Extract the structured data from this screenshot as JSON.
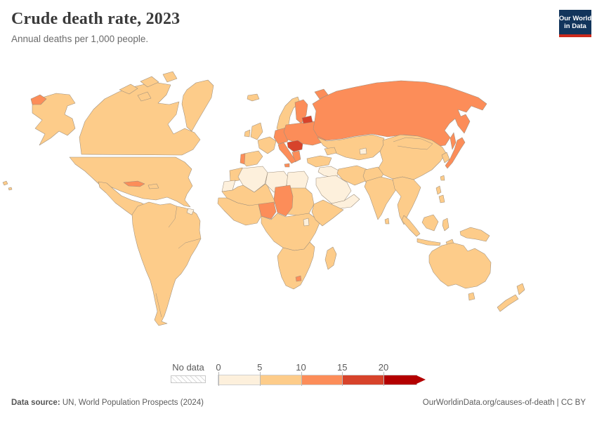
{
  "header": {
    "title": "Crude death rate, 2023",
    "subtitle": "Annual deaths per 1,000 people."
  },
  "logo": {
    "line1": "Our World",
    "line2": "in Data",
    "bg_color": "#12355c",
    "accent_color": "#cc2a1c"
  },
  "legend": {
    "no_data_label": "No data",
    "ticks": [
      "0",
      "5",
      "10",
      "15",
      "20"
    ],
    "bins": [
      {
        "range": "0-5",
        "color": "#fdf0dc"
      },
      {
        "range": "5-10",
        "color": "#fdcc8a"
      },
      {
        "range": "10-15",
        "color": "#fc8d59"
      },
      {
        "range": "15-20",
        "color": "#d7432b"
      },
      {
        "range": "20+",
        "color": "#b30000"
      }
    ]
  },
  "footer": {
    "source_label": "Data source:",
    "source_text": " UN, World Population Prospects (2024)",
    "right_text": "OurWorldinData.org/causes-of-death | CC BY"
  },
  "map_data": {
    "type": "choropleth",
    "metric": "Crude death rate (annual deaths per 1,000 people)",
    "year": "2023",
    "no_data_style": "hatched",
    "regions": [
      {
        "id": "canada",
        "bin": "5-10"
      },
      {
        "id": "arctic_islands",
        "bin": "5-10"
      },
      {
        "id": "greenland",
        "bin": "5-10"
      },
      {
        "id": "alaska",
        "bin": "5-10"
      },
      {
        "id": "chukotka_fragment",
        "bin": "10-15"
      },
      {
        "id": "usa",
        "bin": "5-10"
      },
      {
        "id": "mexico",
        "bin": "5-10"
      },
      {
        "id": "hawaii",
        "bin": "5-10"
      },
      {
        "id": "central_america",
        "bin": "0-5"
      },
      {
        "id": "cuba",
        "bin": "10-15"
      },
      {
        "id": "hispaniola",
        "bin": "5-10"
      },
      {
        "id": "south_america",
        "bin": "5-10"
      },
      {
        "id": "french_guiana",
        "bin": "0-5"
      },
      {
        "id": "iceland",
        "bin": "5-10"
      },
      {
        "id": "norway_sweden",
        "bin": "5-10"
      },
      {
        "id": "denmark",
        "bin": "5-10"
      },
      {
        "id": "finland",
        "bin": "10-15"
      },
      {
        "id": "uk",
        "bin": "5-10"
      },
      {
        "id": "ireland",
        "bin": "5-10"
      },
      {
        "id": "france",
        "bin": "5-10"
      },
      {
        "id": "iberia",
        "bin": "5-10"
      },
      {
        "id": "portugal",
        "bin": "10-15"
      },
      {
        "id": "germany_central",
        "bin": "10-15"
      },
      {
        "id": "eastern_europe",
        "bin": "10-15"
      },
      {
        "id": "baltics",
        "bin": "15-20"
      },
      {
        "id": "balkans",
        "bin": "15-20"
      },
      {
        "id": "greece",
        "bin": "10-15"
      },
      {
        "id": "italy",
        "bin": "10-15"
      },
      {
        "id": "sicily",
        "bin": "10-15"
      },
      {
        "id": "russia",
        "bin": "10-15"
      },
      {
        "id": "novaya_zemlya",
        "bin": "10-15"
      },
      {
        "id": "sakhalin",
        "bin": "10-15"
      },
      {
        "id": "central_asia",
        "bin": "5-10"
      },
      {
        "id": "tajikistan",
        "bin": "0-5"
      },
      {
        "id": "caucasus",
        "bin": "5-10"
      },
      {
        "id": "turkey",
        "bin": "5-10"
      },
      {
        "id": "levant_iraq",
        "bin": "0-5"
      },
      {
        "id": "saudi_arabia",
        "bin": "0-5"
      },
      {
        "id": "yemen_oman",
        "bin": "0-5"
      },
      {
        "id": "iran",
        "bin": "5-10"
      },
      {
        "id": "afghanistan_pakistan",
        "bin": "5-10"
      },
      {
        "id": "india",
        "bin": "5-10"
      },
      {
        "id": "sri_lanka",
        "bin": "5-10"
      },
      {
        "id": "china",
        "bin": "5-10"
      },
      {
        "id": "korea",
        "bin": "5-10"
      },
      {
        "id": "se_asia",
        "bin": "5-10"
      },
      {
        "id": "japan",
        "bin": "10-15"
      },
      {
        "id": "taiwan",
        "bin": "5-10"
      },
      {
        "id": "philippines",
        "bin": "5-10"
      },
      {
        "id": "indonesia_sumatra",
        "bin": "5-10"
      },
      {
        "id": "indonesia_java",
        "bin": "5-10"
      },
      {
        "id": "indonesia_borneo",
        "bin": "5-10"
      },
      {
        "id": "indonesia_sulawesi",
        "bin": "5-10"
      },
      {
        "id": "timor",
        "bin": "5-10"
      },
      {
        "id": "new_guinea",
        "bin": "5-10"
      },
      {
        "id": "australia",
        "bin": "5-10"
      },
      {
        "id": "tasmania",
        "bin": "5-10"
      },
      {
        "id": "nz_north",
        "bin": "5-10"
      },
      {
        "id": "nz_south",
        "bin": "5-10"
      },
      {
        "id": "morocco",
        "bin": "5-10"
      },
      {
        "id": "western_sahara",
        "bin": "0-5"
      },
      {
        "id": "algeria",
        "bin": "0-5"
      },
      {
        "id": "libya",
        "bin": "0-5"
      },
      {
        "id": "egypt",
        "bin": "0-5"
      },
      {
        "id": "sahel",
        "bin": "5-10"
      },
      {
        "id": "sudan",
        "bin": "5-10"
      },
      {
        "id": "west_africa",
        "bin": "5-10"
      },
      {
        "id": "central_africa",
        "bin": "5-10"
      },
      {
        "id": "horn_of_africa",
        "bin": "5-10"
      },
      {
        "id": "chad",
        "bin": "10-15"
      },
      {
        "id": "nigeria",
        "bin": "10-15"
      },
      {
        "id": "uganda",
        "bin": "0-5"
      },
      {
        "id": "southern_africa",
        "bin": "5-10"
      },
      {
        "id": "lesotho",
        "bin": "10-15"
      },
      {
        "id": "madagascar",
        "bin": "5-10"
      }
    ]
  }
}
